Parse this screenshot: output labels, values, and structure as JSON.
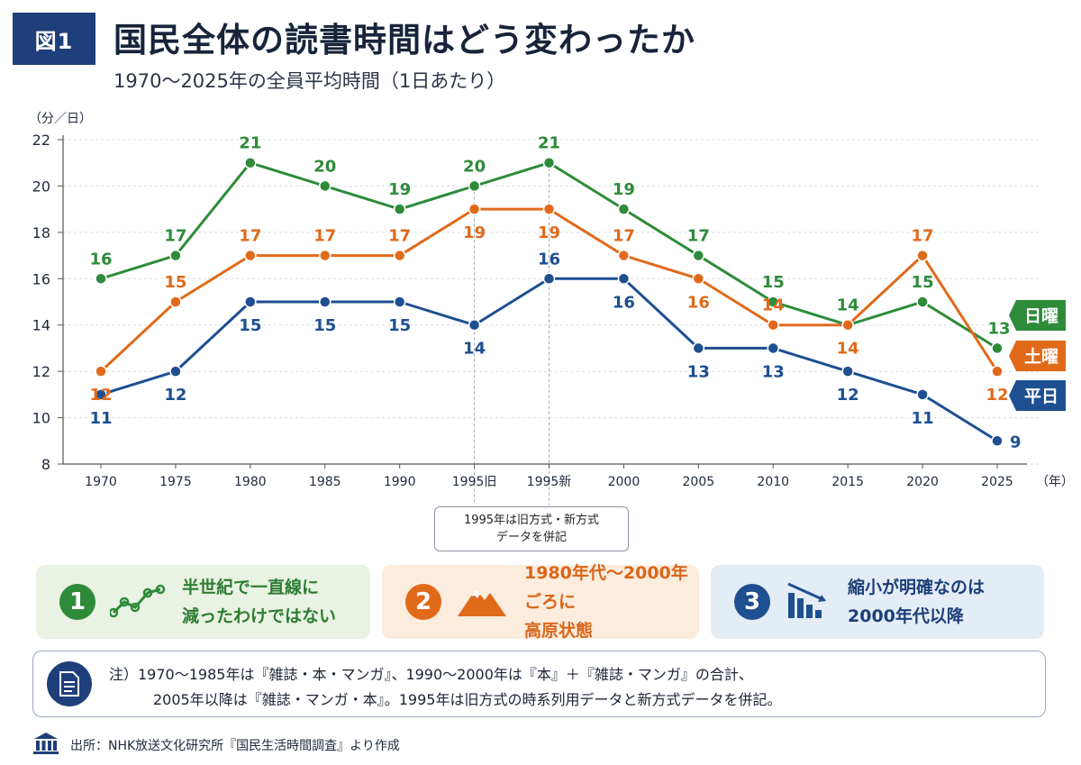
{
  "header": {
    "badge": "図1",
    "title": "国民全体の読書時間はどう変わったか",
    "subtitle": "1970～2025年の全員平均時間（1日あたり）"
  },
  "chart_data": {
    "type": "line",
    "y_unit_label": "（分／日）",
    "x_unit_label": "（年）",
    "ylim": [
      8,
      22
    ],
    "yticks": [
      8,
      10,
      12,
      14,
      16,
      18,
      20,
      22
    ],
    "grid": true,
    "categories": [
      "1970",
      "1975",
      "1980",
      "1985",
      "1990",
      "1995旧",
      "1995新",
      "2000",
      "2005",
      "2010",
      "2015",
      "2020",
      "2025"
    ],
    "series": [
      {
        "name": "日曜",
        "color": "#2e8b3a",
        "values": [
          16,
          17,
          21,
          20,
          19,
          20,
          21,
          19,
          17,
          15,
          14,
          15,
          13
        ]
      },
      {
        "name": "土曜",
        "color": "#e06a1a",
        "values": [
          12,
          15,
          17,
          17,
          17,
          19,
          19,
          17,
          16,
          14,
          14,
          17,
          12
        ]
      },
      {
        "name": "平日",
        "color": "#1d4f91",
        "values": [
          11,
          12,
          15,
          15,
          15,
          14,
          16,
          16,
          13,
          13,
          12,
          11,
          9
        ]
      }
    ],
    "callout": [
      "1995年は旧方式・新方式",
      "データを併記"
    ]
  },
  "points": [
    {
      "num": "1",
      "lines": [
        "半世紀で一直線に",
        "減ったわけではない"
      ],
      "icon": "trend-line-icon"
    },
    {
      "num": "2",
      "lines": [
        "1980年代～2000年ごろに",
        "高原状態"
      ],
      "icon": "mountain-icon"
    },
    {
      "num": "3",
      "lines": [
        "縮小が明確なのは",
        "2000年代以降"
      ],
      "icon": "declining-bars-icon"
    }
  ],
  "note": {
    "line1": "注）1970～1985年は『雑誌・本・マンガ』、1990～2000年は『本』＋『雑誌・マンガ』の合計、",
    "line2": "2005年以降は『雑誌・マンガ・本』。1995年は旧方式の時系列用データと新方式データを併記。",
    "icon": "document-icon"
  },
  "source": {
    "text": "出所：NHK放送文化研究所『国民生活時間調査』より作成",
    "icon": "institution-icon"
  },
  "colors": {
    "navy": "#1f3f7a",
    "green": "#2e8b3a",
    "orange": "#e06a1a",
    "blue": "#1d4f91"
  }
}
